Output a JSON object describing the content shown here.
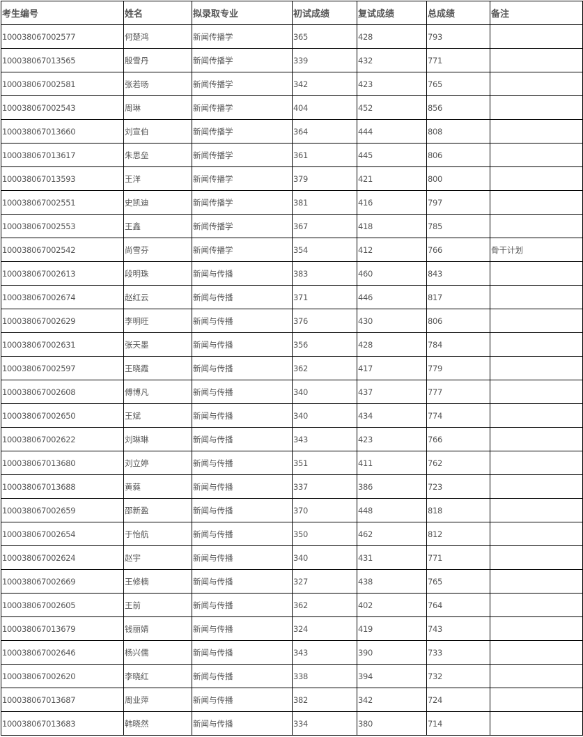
{
  "table": {
    "headers": [
      "考生编号",
      "姓名",
      "拟录取专业",
      "初试成绩",
      "复试成绩",
      "总成绩",
      "备注"
    ],
    "rows": [
      [
        "100038067002577",
        "何楚鸿",
        "新闻传播学",
        "365",
        "428",
        "793",
        ""
      ],
      [
        "100038067013565",
        "殷雪丹",
        "新闻传播学",
        "339",
        "432",
        "771",
        ""
      ],
      [
        "100038067002581",
        "张若旸",
        "新闻传播学",
        "342",
        "423",
        "765",
        ""
      ],
      [
        "100038067002543",
        "周琳",
        "新闻传播学",
        "404",
        "452",
        "856",
        ""
      ],
      [
        "100038067013660",
        "刘宣伯",
        "新闻传播学",
        "364",
        "444",
        "808",
        ""
      ],
      [
        "100038067013617",
        "朱思垒",
        "新闻传播学",
        "361",
        "445",
        "806",
        ""
      ],
      [
        "100038067013593",
        "王洋",
        "新闻传播学",
        "379",
        "421",
        "800",
        ""
      ],
      [
        "100038067002551",
        "史凯迪",
        "新闻传播学",
        "381",
        "416",
        "797",
        ""
      ],
      [
        "100038067002553",
        "王鑫",
        "新闻传播学",
        "367",
        "418",
        "785",
        ""
      ],
      [
        "100038067002542",
        "尚雪芬",
        "新闻传播学",
        "354",
        "412",
        "766",
        "骨干计划"
      ],
      [
        "100038067002613",
        "段明珠",
        "新闻与传播",
        "383",
        "460",
        "843",
        ""
      ],
      [
        "100038067002674",
        "赵红云",
        "新闻与传播",
        "371",
        "446",
        "817",
        ""
      ],
      [
        "100038067002629",
        "李明旺",
        "新闻与传播",
        "376",
        "430",
        "806",
        ""
      ],
      [
        "100038067002631",
        "张天墨",
        "新闻与传播",
        "356",
        "428",
        "784",
        ""
      ],
      [
        "100038067002597",
        "王晓霞",
        "新闻与传播",
        "362",
        "417",
        "779",
        ""
      ],
      [
        "100038067002608",
        "傅博凡",
        "新闻与传播",
        "340",
        "437",
        "777",
        ""
      ],
      [
        "100038067002650",
        "王斌",
        "新闻与传播",
        "340",
        "434",
        "774",
        ""
      ],
      [
        "100038067002622",
        "刘琳琳",
        "新闻与传播",
        "343",
        "423",
        "766",
        ""
      ],
      [
        "100038067013680",
        "刘立婷",
        "新闻与传播",
        "351",
        "411",
        "762",
        ""
      ],
      [
        "100038067013688",
        "黄蕤",
        "新闻与传播",
        "337",
        "386",
        "723",
        ""
      ],
      [
        "100038067002659",
        "邵新盈",
        "新闻与传播",
        "370",
        "448",
        "818",
        ""
      ],
      [
        "100038067002654",
        "于怡航",
        "新闻与传播",
        "350",
        "462",
        "812",
        ""
      ],
      [
        "100038067002624",
        "赵宇",
        "新闻与传播",
        "340",
        "431",
        "771",
        ""
      ],
      [
        "100038067002669",
        "王修楠",
        "新闻与传播",
        "327",
        "438",
        "765",
        ""
      ],
      [
        "100038067002605",
        "王前",
        "新闻与传播",
        "362",
        "402",
        "764",
        ""
      ],
      [
        "100038067013679",
        "钱丽婧",
        "新闻与传播",
        "324",
        "419",
        "743",
        ""
      ],
      [
        "100038067002646",
        "杨兴儒",
        "新闻与传播",
        "343",
        "390",
        "733",
        ""
      ],
      [
        "100038067002620",
        "李晓红",
        "新闻与传播",
        "338",
        "394",
        "732",
        ""
      ],
      [
        "100038067013687",
        "周业萍",
        "新闻与传播",
        "382",
        "342",
        "724",
        ""
      ],
      [
        "100038067013683",
        "韩晓然",
        "新闻与传播",
        "334",
        "380",
        "714",
        ""
      ]
    ]
  }
}
